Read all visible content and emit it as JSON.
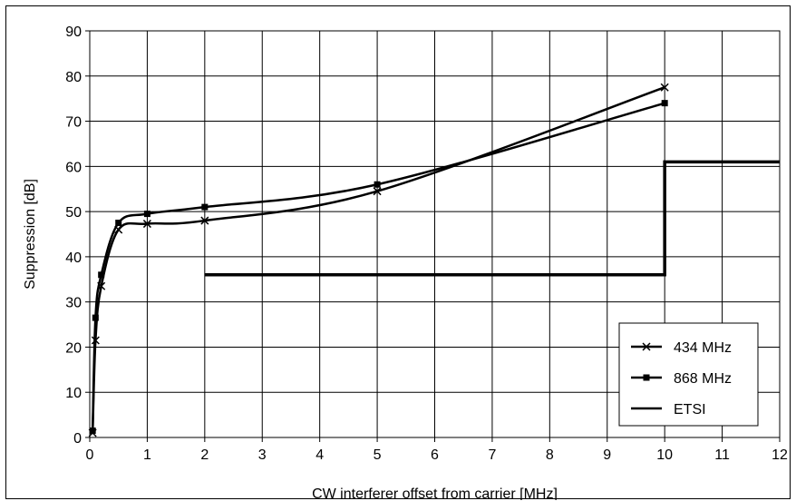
{
  "chart_data": {
    "type": "line",
    "title": "",
    "xlabel": "CW interferer offset from carrier [MHz]",
    "ylabel": "Suppression [dB]",
    "xlim": [
      0,
      12
    ],
    "ylim": [
      0,
      90
    ],
    "xticks": [
      0,
      1,
      2,
      3,
      4,
      5,
      6,
      7,
      8,
      9,
      10,
      11,
      12
    ],
    "yticks": [
      0,
      10,
      20,
      30,
      40,
      50,
      60,
      70,
      80,
      90
    ],
    "grid": true,
    "legend": "bottom-right",
    "series": [
      {
        "name": "434 MHz",
        "marker": "x",
        "smooth": true,
        "x": [
          0.05,
          0.1,
          0.2,
          0.5,
          1,
          2,
          5,
          10
        ],
        "y": [
          1,
          21.5,
          33.5,
          46,
          47.3,
          48,
          54.5,
          77.5
        ]
      },
      {
        "name": "868 MHz",
        "marker": "square",
        "smooth": true,
        "x": [
          0.05,
          0.1,
          0.2,
          0.5,
          1,
          2,
          5,
          10
        ],
        "y": [
          1.5,
          26.5,
          36,
          47.5,
          49.5,
          51,
          56,
          74
        ]
      },
      {
        "name": "ETSI",
        "marker": "none",
        "smooth": false,
        "x": [
          2,
          10,
          10,
          12
        ],
        "y": [
          36,
          36,
          61,
          61
        ]
      }
    ]
  }
}
